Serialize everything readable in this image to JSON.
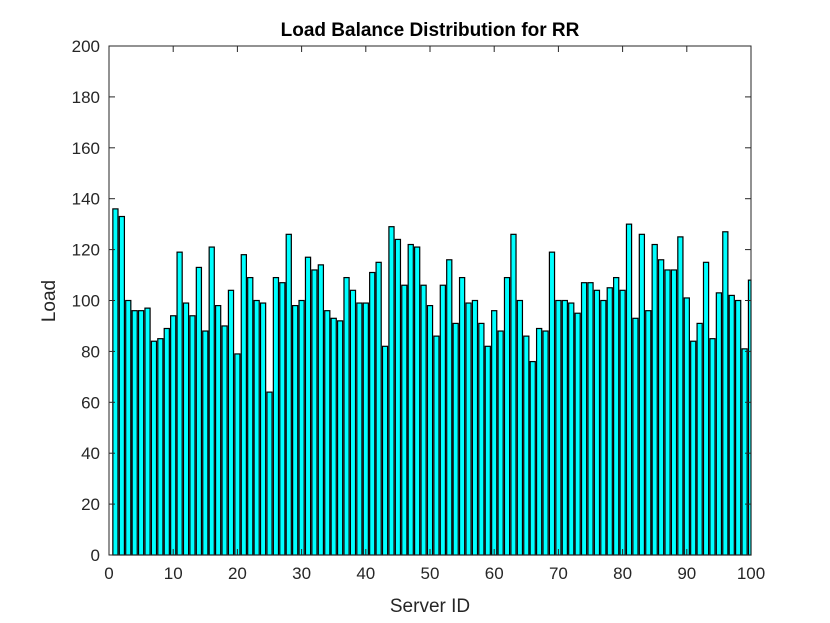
{
  "chart_data": {
    "type": "bar",
    "title": "Load Balance Distribution for RR",
    "xlabel": "Server ID",
    "ylabel": "Load",
    "xlim": [
      0,
      100
    ],
    "ylim": [
      0,
      200
    ],
    "xticks": [
      0,
      10,
      20,
      30,
      40,
      50,
      60,
      70,
      80,
      90,
      100
    ],
    "yticks": [
      0,
      20,
      40,
      60,
      80,
      100,
      120,
      140,
      160,
      180,
      200
    ],
    "grid": false,
    "legend": "none",
    "bar_color": "#00ffff",
    "edge_color": "#000000",
    "x": [
      1,
      2,
      3,
      4,
      5,
      6,
      7,
      8,
      9,
      10,
      11,
      12,
      13,
      14,
      15,
      16,
      17,
      18,
      19,
      20,
      21,
      22,
      23,
      24,
      25,
      26,
      27,
      28,
      29,
      30,
      31,
      32,
      33,
      34,
      35,
      36,
      37,
      38,
      39,
      40,
      41,
      42,
      43,
      44,
      45,
      46,
      47,
      48,
      49,
      50,
      51,
      52,
      53,
      54,
      55,
      56,
      57,
      58,
      59,
      60,
      61,
      62,
      63,
      64,
      65,
      66,
      67,
      68,
      69,
      70,
      71,
      72,
      73,
      74,
      75,
      76,
      77,
      78,
      79,
      80,
      81,
      82,
      83,
      84,
      85,
      86,
      87,
      88,
      89,
      90,
      91,
      92,
      93,
      94,
      95,
      96,
      97,
      98,
      99,
      100
    ],
    "values": [
      136,
      133,
      100,
      96,
      96,
      97,
      84,
      85,
      89,
      94,
      119,
      99,
      94,
      113,
      88,
      121,
      98,
      90,
      104,
      79,
      118,
      109,
      100,
      99,
      64,
      109,
      107,
      126,
      98,
      100,
      117,
      112,
      114,
      96,
      93,
      92,
      109,
      104,
      99,
      99,
      111,
      115,
      82,
      129,
      124,
      106,
      122,
      121,
      106,
      98,
      86,
      106,
      116,
      91,
      109,
      99,
      100,
      91,
      82,
      96,
      88,
      109,
      126,
      100,
      86,
      76,
      89,
      88,
      119,
      100,
      100,
      99,
      95,
      107,
      107,
      104,
      100,
      105,
      109,
      104,
      130,
      93,
      126,
      96,
      122,
      116,
      112,
      112,
      125,
      101,
      84,
      91,
      115,
      85,
      103,
      127,
      102,
      100,
      81,
      108
    ]
  }
}
